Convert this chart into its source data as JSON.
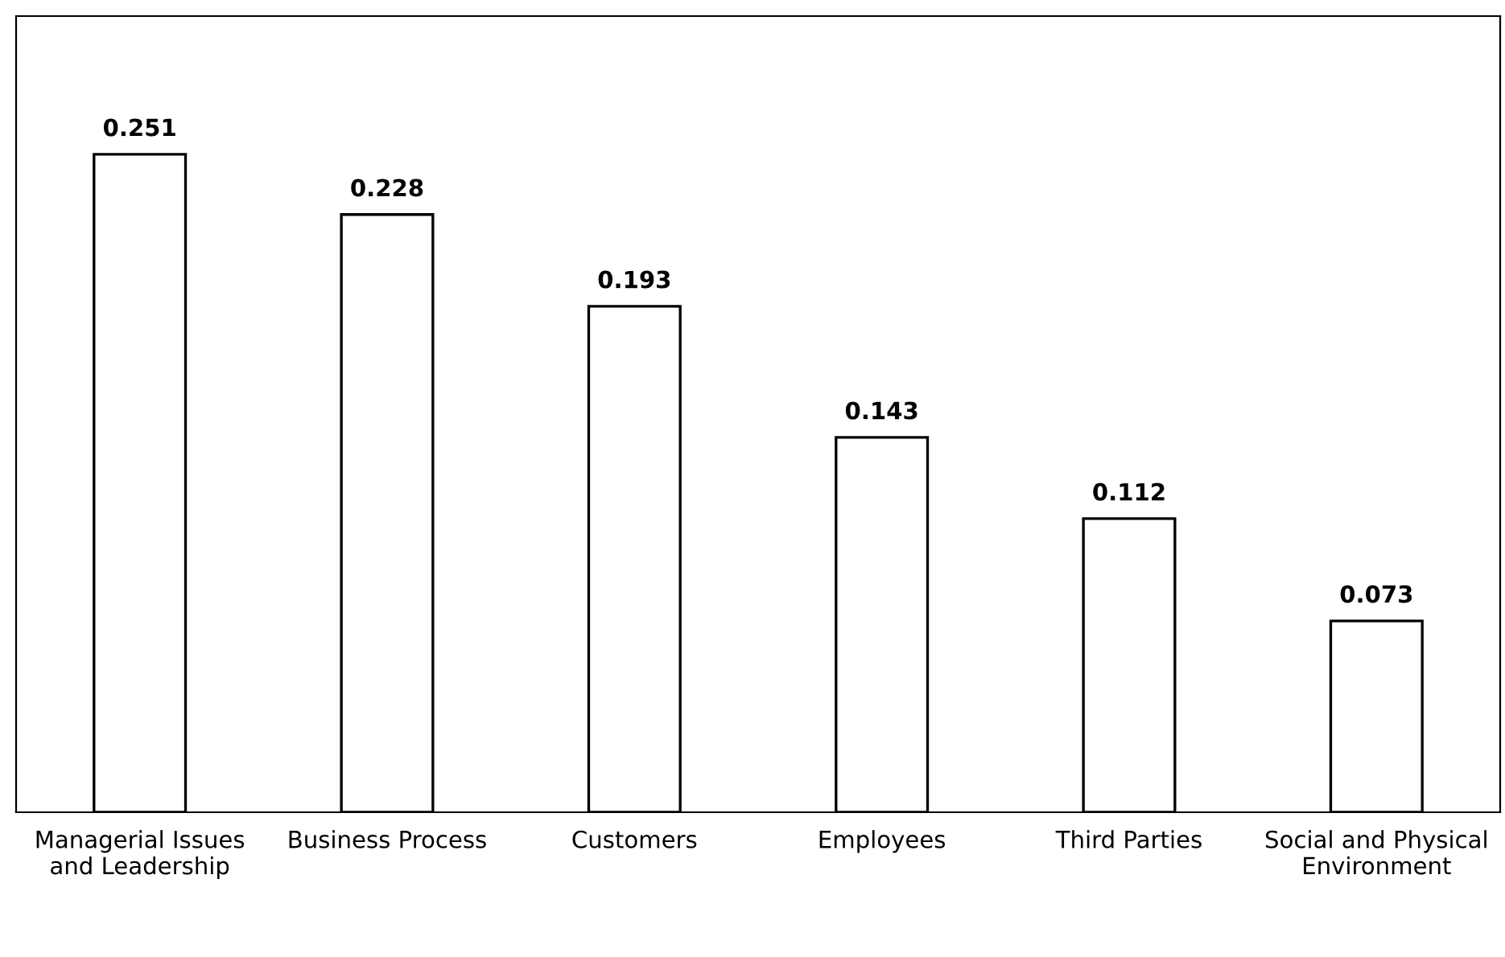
{
  "chart_data": {
    "type": "bar",
    "categories": [
      "Managerial Issues\nand Leadership",
      "Business Process",
      "Customers",
      "Employees",
      "Third Parties",
      "Social and Physical\nEnvironment"
    ],
    "values": [
      0.251,
      0.228,
      0.193,
      0.143,
      0.112,
      0.073
    ],
    "color": "#ffffff",
    "data_labels": true,
    "grid": false,
    "legend": false
  }
}
